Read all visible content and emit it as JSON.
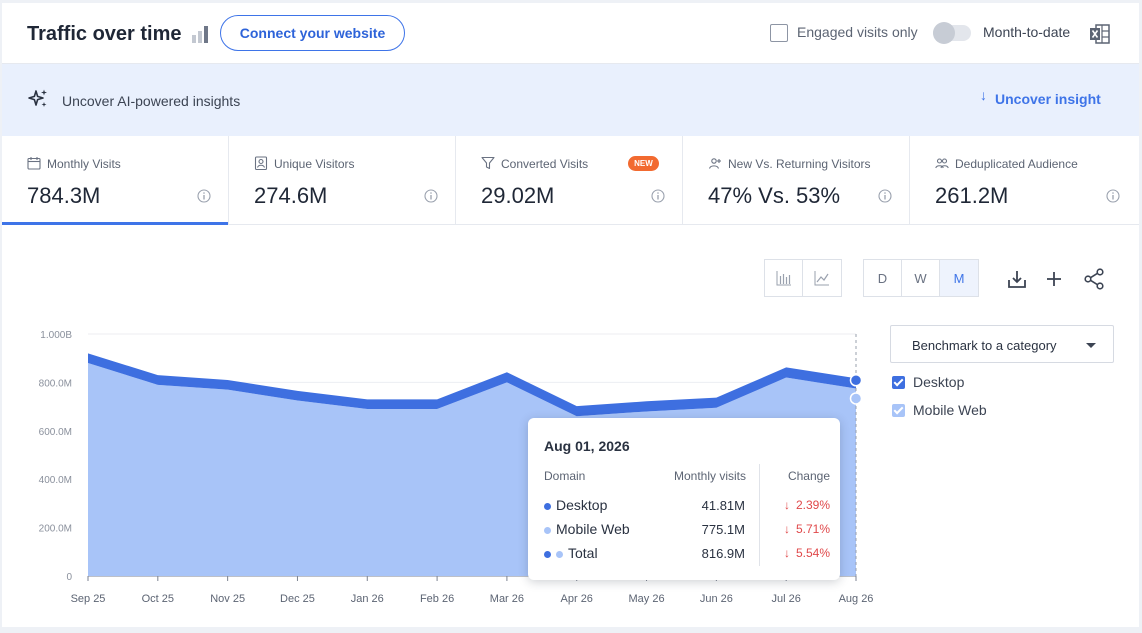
{
  "header": {
    "title": "Traffic over time",
    "connect_label": "Connect your website",
    "engaged_label": "Engaged visits only",
    "engaged_checked": false,
    "month_to_date_label": "Month-to-date",
    "month_to_date_on": false
  },
  "banner": {
    "text": "Uncover AI-powered insights",
    "link_label": "Uncover insight"
  },
  "metrics": [
    {
      "label": "Monthly Visits",
      "value": "784.3M",
      "icon": "calendar-icon",
      "active": true
    },
    {
      "label": "Unique Visitors",
      "value": "274.6M",
      "icon": "person-badge-icon",
      "active": false
    },
    {
      "label": "Converted Visits",
      "value": "29.02M",
      "icon": "funnel-icon",
      "active": false,
      "badge": "NEW"
    },
    {
      "label": "New Vs. Returning Visitors",
      "value": "47% Vs. 53%",
      "icon": "person-plus-icon",
      "active": false
    },
    {
      "label": "Deduplicated Audience",
      "value": "261.2M",
      "icon": "people-icon",
      "active": false
    }
  ],
  "toolbar": {
    "granularity": [
      "D",
      "W",
      "M"
    ],
    "selected_granularity": "M"
  },
  "benchmark": {
    "label": "Benchmark to a category"
  },
  "legend": [
    {
      "label": "Desktop",
      "color": "#3e6fe0",
      "checked": true
    },
    {
      "label": "Mobile Web",
      "color": "#a8c4f8",
      "checked": true
    }
  ],
  "tooltip": {
    "date": "Aug 01, 2026",
    "col_domain": "Domain",
    "col_visits": "Monthly visits",
    "col_change": "Change",
    "rows": [
      {
        "name": "Desktop",
        "visits": "41.81M",
        "change": "2.39%",
        "dots": [
          "#3e6fe0"
        ]
      },
      {
        "name": "Mobile Web",
        "visits": "775.1M",
        "change": "5.71%",
        "dots": [
          "#a8c4f8"
        ]
      },
      {
        "name": "Total",
        "visits": "816.9M",
        "change": "5.54%",
        "dots": [
          "#3e6fe0",
          "#a8c4f8"
        ]
      }
    ]
  },
  "chart_data": {
    "type": "area",
    "stacked": true,
    "categories": [
      "Sep 25",
      "Oct 25",
      "Nov 25",
      "Dec 25",
      "Jan 26",
      "Feb 26",
      "Mar 26",
      "Apr 26",
      "May 26",
      "Jun 26",
      "Jul 26",
      "Aug 26"
    ],
    "y_tick_labels": [
      "0",
      "200.0M",
      "400.0M",
      "600.0M",
      "800.0M",
      "1.000B"
    ],
    "ylim": [
      0,
      1000
    ],
    "y_unit": "M",
    "series": [
      {
        "name": "Mobile Web",
        "color": "#a8c4f8",
        "values": [
          880,
          790,
          770,
          725,
          690,
          690,
          800,
          660,
          680,
          695,
          820,
          775
        ]
      },
      {
        "name": "Desktop",
        "color": "#3e6fe0",
        "values": [
          40,
          40,
          40,
          40,
          40,
          40,
          42,
          42,
          42,
          42,
          42,
          42
        ]
      }
    ],
    "grid": true,
    "legend_position": "right"
  }
}
